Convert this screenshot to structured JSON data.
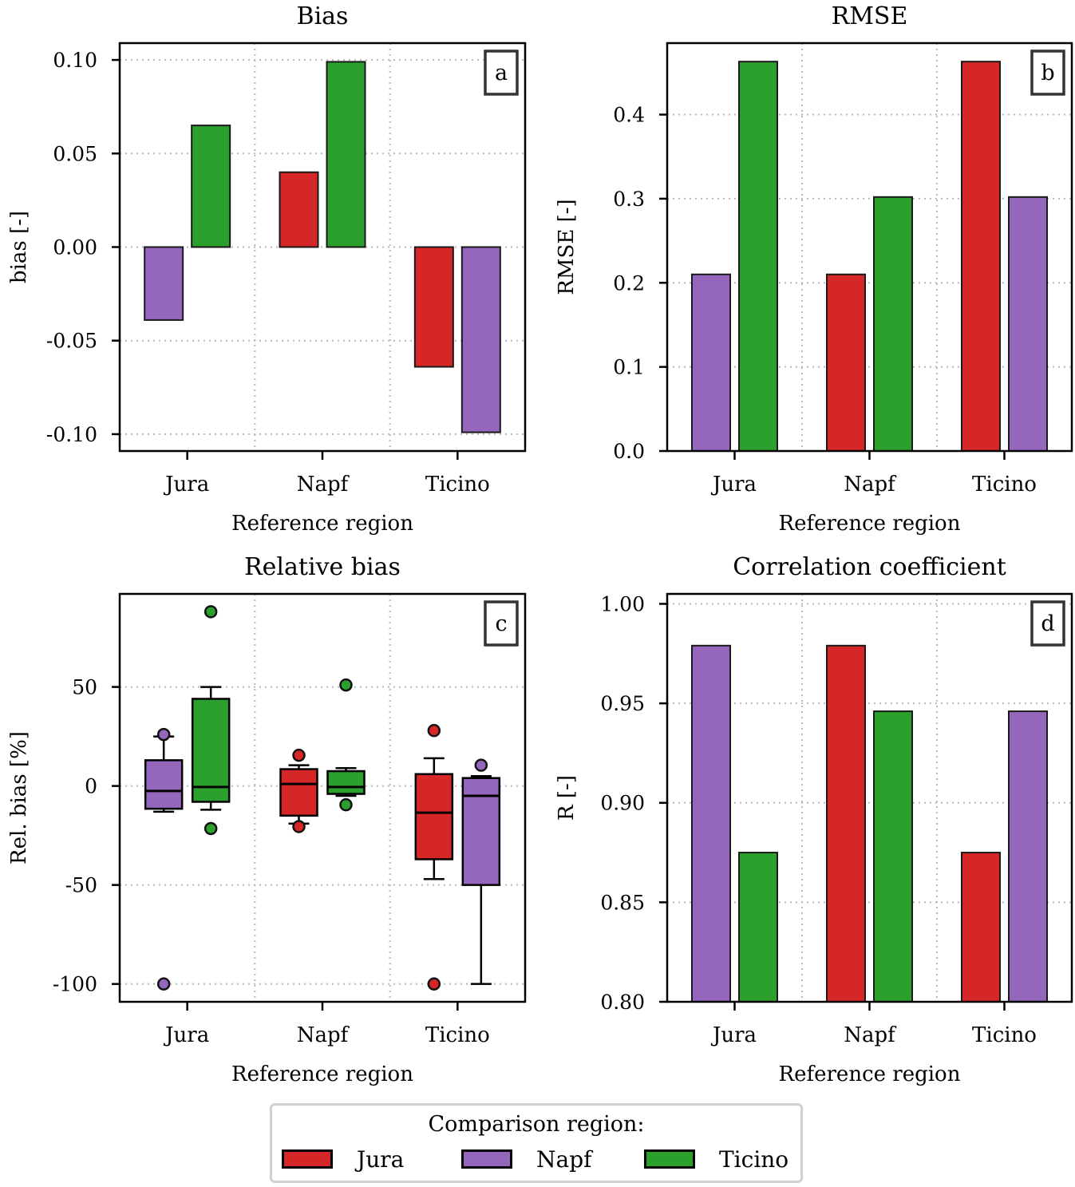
{
  "figure": {
    "legend": {
      "title": "Comparison region:",
      "entries": [
        {
          "name": "Jura",
          "color": "#d62728"
        },
        {
          "name": "Napf",
          "color": "#9467bd"
        },
        {
          "name": "Ticino",
          "color": "#2ca02c"
        }
      ]
    }
  },
  "chart_data": [
    {
      "id": "a",
      "panel_label": "a",
      "type": "bar",
      "title": "Bias",
      "xlabel": "Reference region",
      "ylabel": "bias [-]",
      "categories": [
        "Jura",
        "Napf",
        "Ticino"
      ],
      "ylim": [
        -0.109,
        0.109
      ],
      "yticks": [
        -0.1,
        -0.05,
        0.0,
        0.05,
        0.1
      ],
      "ytick_labels": [
        "-0.10",
        "-0.05",
        "0.00",
        "0.05",
        "0.10"
      ],
      "grid": true,
      "bars": [
        {
          "category": "Jura",
          "series": "Napf",
          "value": -0.039
        },
        {
          "category": "Jura",
          "series": "Ticino",
          "value": 0.065
        },
        {
          "category": "Napf",
          "series": "Jura",
          "value": 0.04
        },
        {
          "category": "Napf",
          "series": "Ticino",
          "value": 0.099
        },
        {
          "category": "Ticino",
          "series": "Jura",
          "value": -0.064
        },
        {
          "category": "Ticino",
          "series": "Napf",
          "value": -0.099
        }
      ]
    },
    {
      "id": "b",
      "panel_label": "b",
      "type": "bar",
      "title": "RMSE",
      "xlabel": "Reference region",
      "ylabel": "RMSE [-]",
      "categories": [
        "Jura",
        "Napf",
        "Ticino"
      ],
      "ylim": [
        0,
        0.485
      ],
      "yticks": [
        0.0,
        0.1,
        0.2,
        0.3,
        0.4
      ],
      "ytick_labels": [
        "0.0",
        "0.1",
        "0.2",
        "0.3",
        "0.4"
      ],
      "grid": true,
      "bars": [
        {
          "category": "Jura",
          "series": "Napf",
          "value": 0.21
        },
        {
          "category": "Jura",
          "series": "Ticino",
          "value": 0.463
        },
        {
          "category": "Napf",
          "series": "Jura",
          "value": 0.21
        },
        {
          "category": "Napf",
          "series": "Ticino",
          "value": 0.302
        },
        {
          "category": "Ticino",
          "series": "Jura",
          "value": 0.463
        },
        {
          "category": "Ticino",
          "series": "Napf",
          "value": 0.302
        }
      ]
    },
    {
      "id": "c",
      "panel_label": "c",
      "type": "box",
      "title": "Relative bias",
      "xlabel": "Reference region",
      "ylabel": "Rel. bias [%]",
      "categories": [
        "Jura",
        "Napf",
        "Ticino"
      ],
      "ylim": [
        -109,
        97
      ],
      "yticks": [
        -100,
        -50,
        0,
        50
      ],
      "ytick_labels": [
        "-100",
        "-50",
        "0",
        "50"
      ],
      "grid": true,
      "boxes": [
        {
          "category": "Jura",
          "series": "Napf",
          "whislo": -13,
          "q1": -11.5,
          "med": -2.5,
          "q3": 13,
          "whishi": 25,
          "fliers": [
            26,
            -100
          ]
        },
        {
          "category": "Jura",
          "series": "Ticino",
          "whislo": -12,
          "q1": -8,
          "med": -0.5,
          "q3": 44,
          "whishi": 50,
          "fliers": [
            88,
            -21.5
          ]
        },
        {
          "category": "Napf",
          "series": "Jura",
          "whislo": -19,
          "q1": -15,
          "med": 1,
          "q3": 8.5,
          "whishi": 10.5,
          "fliers": [
            15.5,
            -20.5
          ]
        },
        {
          "category": "Napf",
          "series": "Ticino",
          "whislo": -5,
          "q1": -4,
          "med": -0.5,
          "q3": 7.5,
          "whishi": 9,
          "fliers": [
            51,
            -9.5
          ]
        },
        {
          "category": "Ticino",
          "series": "Jura",
          "whislo": -47,
          "q1": -37,
          "med": -13.5,
          "q3": 6,
          "whishi": 14,
          "fliers": [
            28,
            -100
          ]
        },
        {
          "category": "Ticino",
          "series": "Napf",
          "whislo": -100,
          "q1": -50,
          "med": -5,
          "q3": 4,
          "whishi": 5,
          "fliers": [
            10.5
          ]
        }
      ]
    },
    {
      "id": "d",
      "panel_label": "d",
      "type": "bar",
      "title": "Correlation coefficient",
      "xlabel": "Reference region",
      "ylabel": "R [-]",
      "categories": [
        "Jura",
        "Napf",
        "Ticino"
      ],
      "ylim": [
        0.8,
        1.005
      ],
      "yticks": [
        0.8,
        0.85,
        0.9,
        0.95,
        1.0
      ],
      "ytick_labels": [
        "0.80",
        "0.85",
        "0.90",
        "0.95",
        "1.00"
      ],
      "grid": true,
      "bars": [
        {
          "category": "Jura",
          "series": "Napf",
          "value": 0.979
        },
        {
          "category": "Jura",
          "series": "Ticino",
          "value": 0.875
        },
        {
          "category": "Napf",
          "series": "Jura",
          "value": 0.979
        },
        {
          "category": "Napf",
          "series": "Ticino",
          "value": 0.946
        },
        {
          "category": "Ticino",
          "series": "Jura",
          "value": 0.875
        },
        {
          "category": "Ticino",
          "series": "Napf",
          "value": 0.946
        }
      ]
    }
  ]
}
